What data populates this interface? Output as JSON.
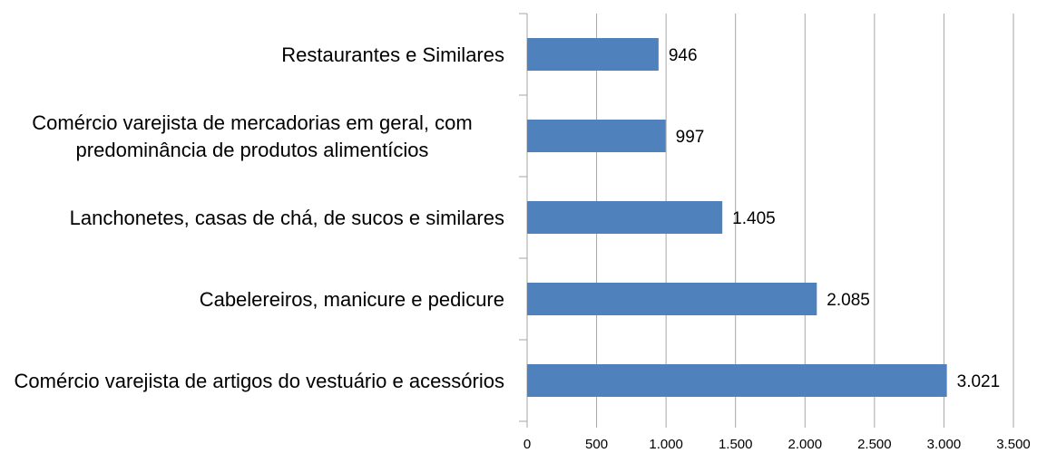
{
  "chart_data": {
    "type": "bar",
    "orientation": "horizontal",
    "categories": [
      "Restaurantes e Similares",
      "Comércio varejista de mercadorias em geral, com predominância de produtos alimentícios",
      "Lanchonetes, casas de chá, de sucos e similares",
      "Cabelereiros, manicure e pedicure",
      "Comércio varejista de artigos do vestuário e acessórios"
    ],
    "values": [
      946,
      997,
      1405,
      2085,
      3021
    ],
    "value_labels": [
      "946",
      "997",
      "1.405",
      "2.085",
      "3.021"
    ],
    "color": "#4f81bd",
    "xlim": [
      0,
      3500
    ],
    "xticks": [
      0,
      500,
      {
        "value": 1000,
        "label": "1.000"
      },
      {
        "value": 1500,
        "label": "1.500"
      },
      {
        "value": 2000,
        "label": "2.000"
      },
      {
        "value": 2500,
        "label": "2.500"
      },
      {
        "value": 3000,
        "label": "3.000"
      },
      {
        "value": 3500,
        "label": "3.500"
      }
    ],
    "grid": true
  }
}
